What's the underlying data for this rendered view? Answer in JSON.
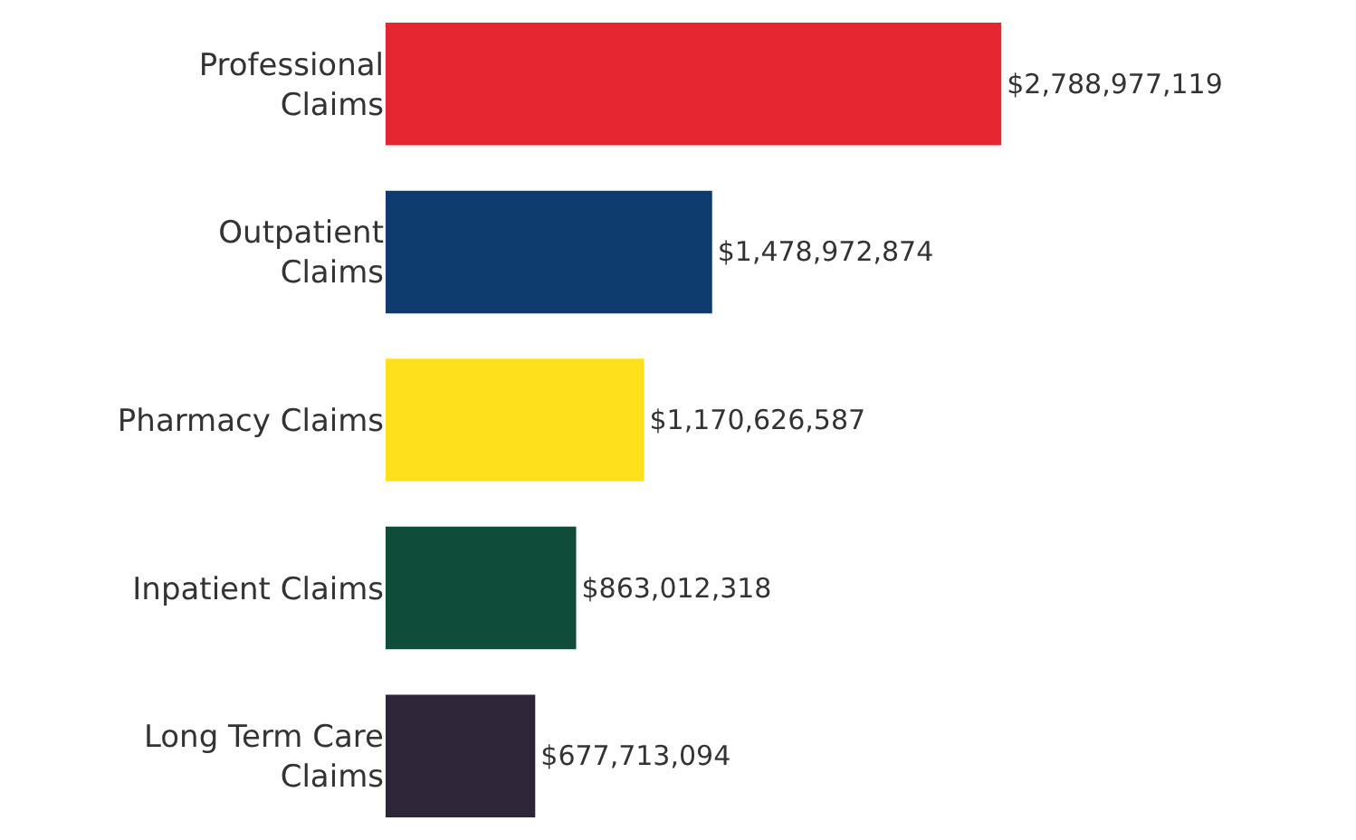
{
  "chart_data": {
    "type": "bar",
    "orientation": "horizontal",
    "categories": [
      "Professional\nClaims",
      "Outpatient\nClaims",
      "Pharmacy Claims",
      "Inpatient Claims",
      "Long Term Care\nClaims"
    ],
    "values": [
      2788977119,
      1478972874,
      1170626587,
      863012318,
      677713094
    ],
    "colors": [
      "#e3262f",
      "#0d3b6e",
      "#ffe01a",
      "#0f4d3a",
      "#2e2638"
    ],
    "value_labels": [
      "$2,788,977,119",
      "$1,478,972,874",
      "$1,170,626,587",
      "$863,012,318",
      "$677,713,094"
    ]
  }
}
